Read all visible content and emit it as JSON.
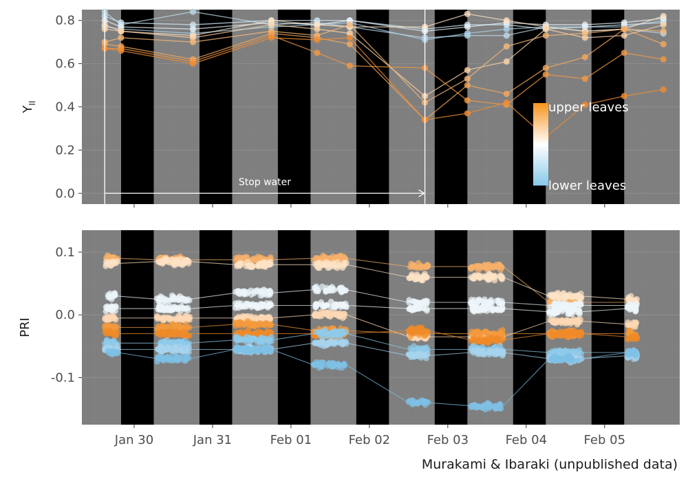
{
  "chart_data": [
    {
      "type": "line",
      "panel": "top",
      "ylabel": "Y",
      "ylabel_subscript": "II",
      "ylim": [
        -0.05,
        0.85
      ],
      "yticks": [
        0.0,
        0.2,
        0.4,
        0.6,
        0.8
      ],
      "ytick_labels": [
        "0.0",
        "0.2",
        "0.4",
        "0.6",
        "0.8"
      ],
      "grid": true,
      "background_color": "#7f7f7f",
      "night_color": "#000000",
      "annotation": "Stop water",
      "annotation_start": "Jan 29 15:00",
      "annotation_end": "Feb 02 17:00",
      "legend": {
        "placement": "right",
        "top_label": "upper leaves",
        "bottom_label": "lower leaves",
        "colors": [
          "#f7941d",
          "#ffffff",
          "#87c8ea"
        ]
      },
      "x": [
        "Jan 29 15:00",
        "Jan 29 20:00",
        "Jan 30 18:00",
        "Jan 31 18:00",
        "Feb 01 08:00",
        "Feb 01 18:00",
        "Feb 02 17:00",
        "Feb 03 06:00",
        "Feb 03 18:00",
        "Feb 04 06:00",
        "Feb 04 18:00",
        "Feb 05 06:00",
        "Feb 05 18:00"
      ],
      "series": [
        {
          "color": "#bdd9e9",
          "values": [
            0.84,
            0.78,
            0.84,
            0.78,
            0.79,
            0.77,
            0.72,
            0.73,
            0.73,
            0.77,
            0.75,
            0.76,
            0.74
          ]
        },
        {
          "color": "#a9d1e8",
          "values": [
            0.77,
            0.76,
            0.74,
            0.77,
            0.78,
            0.79,
            0.71,
            0.74,
            0.76,
            0.77,
            0.77,
            0.77,
            0.8
          ]
        },
        {
          "color": "#cfe5f2",
          "values": [
            0.82,
            0.79,
            0.78,
            0.8,
            0.8,
            0.8,
            0.76,
            0.78,
            0.78,
            0.76,
            0.77,
            0.78,
            0.79
          ]
        },
        {
          "color": "#e6f1f8",
          "values": [
            0.8,
            0.77,
            0.76,
            0.79,
            0.78,
            0.8,
            0.75,
            0.77,
            0.79,
            0.78,
            0.78,
            0.79,
            0.81
          ]
        },
        {
          "color": "#fbe0c2",
          "values": [
            0.78,
            0.75,
            0.73,
            0.8,
            0.78,
            0.77,
            0.77,
            0.83,
            0.8,
            0.77,
            0.75,
            0.76,
            0.82
          ]
        },
        {
          "color": "#fcd3a8",
          "values": [
            0.76,
            0.75,
            0.72,
            0.78,
            0.76,
            0.74,
            0.45,
            0.57,
            0.61,
            0.76,
            0.72,
            0.73,
            0.78
          ]
        },
        {
          "color": "#f8b97a",
          "values": [
            0.7,
            0.72,
            0.7,
            0.75,
            0.73,
            0.78,
            0.42,
            0.53,
            0.68,
            0.73,
            0.74,
            0.76,
            0.75
          ]
        },
        {
          "color": "#f5a85e",
          "values": [
            0.69,
            0.68,
            0.62,
            0.74,
            0.72,
            0.69,
            0.34,
            0.5,
            0.46,
            0.58,
            0.63,
            0.76,
            0.69
          ]
        },
        {
          "color": "#f39a45",
          "values": [
            0.67,
            0.67,
            0.61,
            0.73,
            0.65,
            0.59,
            0.58,
            0.43,
            0.41,
            0.55,
            0.53,
            0.65,
            0.62
          ]
        },
        {
          "color": "#f28c2f",
          "values": [
            0.67,
            0.66,
            0.6,
            0.72,
            0.71,
            0.72,
            0.34,
            0.37,
            0.42,
            0.26,
            0.41,
            0.45,
            0.48
          ]
        }
      ]
    },
    {
      "type": "scatter",
      "panel": "bottom",
      "ylabel": "PRI",
      "ylim": [
        -0.175,
        0.135
      ],
      "yticks": [
        -0.1,
        0.0,
        0.1
      ],
      "ytick_labels": [
        "-0.1",
        "0.0",
        "0.1"
      ],
      "grid": true,
      "background_color": "#7f7f7f",
      "night_color": "#000000",
      "x_axis": {
        "start": "Jan 29 08:00",
        "end": "Feb 05 23:00",
        "ticks": [
          "Jan 30",
          "Jan 31",
          "Feb 01",
          "Feb 02",
          "Feb 03",
          "Feb 04",
          "Feb 05"
        ]
      },
      "nights": [
        [
          "Jan 29 20:00",
          "Jan 30 06:00"
        ],
        [
          "Jan 30 20:00",
          "Jan 31 06:00"
        ],
        [
          "Jan 31 20:00",
          "Feb 01 06:00"
        ],
        [
          "Feb 01 20:00",
          "Feb 02 06:00"
        ],
        [
          "Feb 02 20:00",
          "Feb 03 06:00"
        ],
        [
          "Feb 03 20:00",
          "Feb 04 06:00"
        ],
        [
          "Feb 04 20:00",
          "Feb 05 06:00"
        ]
      ],
      "day_windows": [
        [
          "Jan 29 15:00",
          "Jan 29 19:00"
        ],
        [
          "Jan 30 07:00",
          "Jan 30 17:00"
        ],
        [
          "Jan 31 07:00",
          "Jan 31 18:00"
        ],
        [
          "Feb 01 07:00",
          "Feb 01 17:00"
        ],
        [
          "Feb 02 12:00",
          "Feb 02 18:00"
        ],
        [
          "Feb 03 07:00",
          "Feb 03 17:00"
        ],
        [
          "Feb 04 07:00",
          "Feb 04 17:00"
        ],
        [
          "Feb 05 07:00",
          "Feb 05 10:00"
        ]
      ],
      "series": [
        {
          "color": "#f7b06a",
          "levels": [
            0.09,
            0.088,
            0.088,
            0.09,
            0.077,
            0.077,
            0.02,
            0.02
          ]
        },
        {
          "color": "#fde2c6",
          "levels": [
            0.082,
            0.085,
            0.08,
            0.08,
            0.06,
            0.06,
            0.03,
            0.025
          ]
        },
        {
          "color": "#e9f3f9",
          "levels": [
            0.03,
            0.025,
            0.035,
            0.04,
            0.02,
            0.02,
            0.015,
            0.015
          ]
        },
        {
          "color": "#eef6fb",
          "levels": [
            0.01,
            0.01,
            0.015,
            0.015,
            0.01,
            0.01,
            0.005,
            0.01
          ]
        },
        {
          "color": "#fdd9b5",
          "levels": [
            -0.005,
            -0.005,
            -0.005,
            0.0,
            -0.035,
            -0.035,
            -0.01,
            -0.015
          ]
        },
        {
          "color": "#f39a3c",
          "levels": [
            -0.02,
            -0.02,
            -0.015,
            -0.025,
            -0.03,
            -0.03,
            -0.03,
            -0.03
          ]
        },
        {
          "color": "#f08a2a",
          "levels": [
            -0.03,
            -0.03,
            -0.03,
            -0.03,
            -0.025,
            -0.04,
            -0.03,
            -0.035
          ]
        },
        {
          "color": "#8ecbea",
          "levels": [
            -0.045,
            -0.045,
            -0.04,
            -0.03,
            -0.055,
            -0.055,
            -0.06,
            -0.06
          ]
        },
        {
          "color": "#a6d4ee",
          "levels": [
            -0.055,
            -0.055,
            -0.055,
            -0.045,
            -0.065,
            -0.06,
            -0.07,
            -0.065
          ]
        },
        {
          "color": "#7fc1e6",
          "levels": [
            -0.06,
            -0.07,
            -0.055,
            -0.08,
            -0.14,
            -0.145,
            -0.07,
            -0.06
          ]
        }
      ]
    }
  ],
  "caption": "Murakami & Ibaraki (unpublished data)"
}
